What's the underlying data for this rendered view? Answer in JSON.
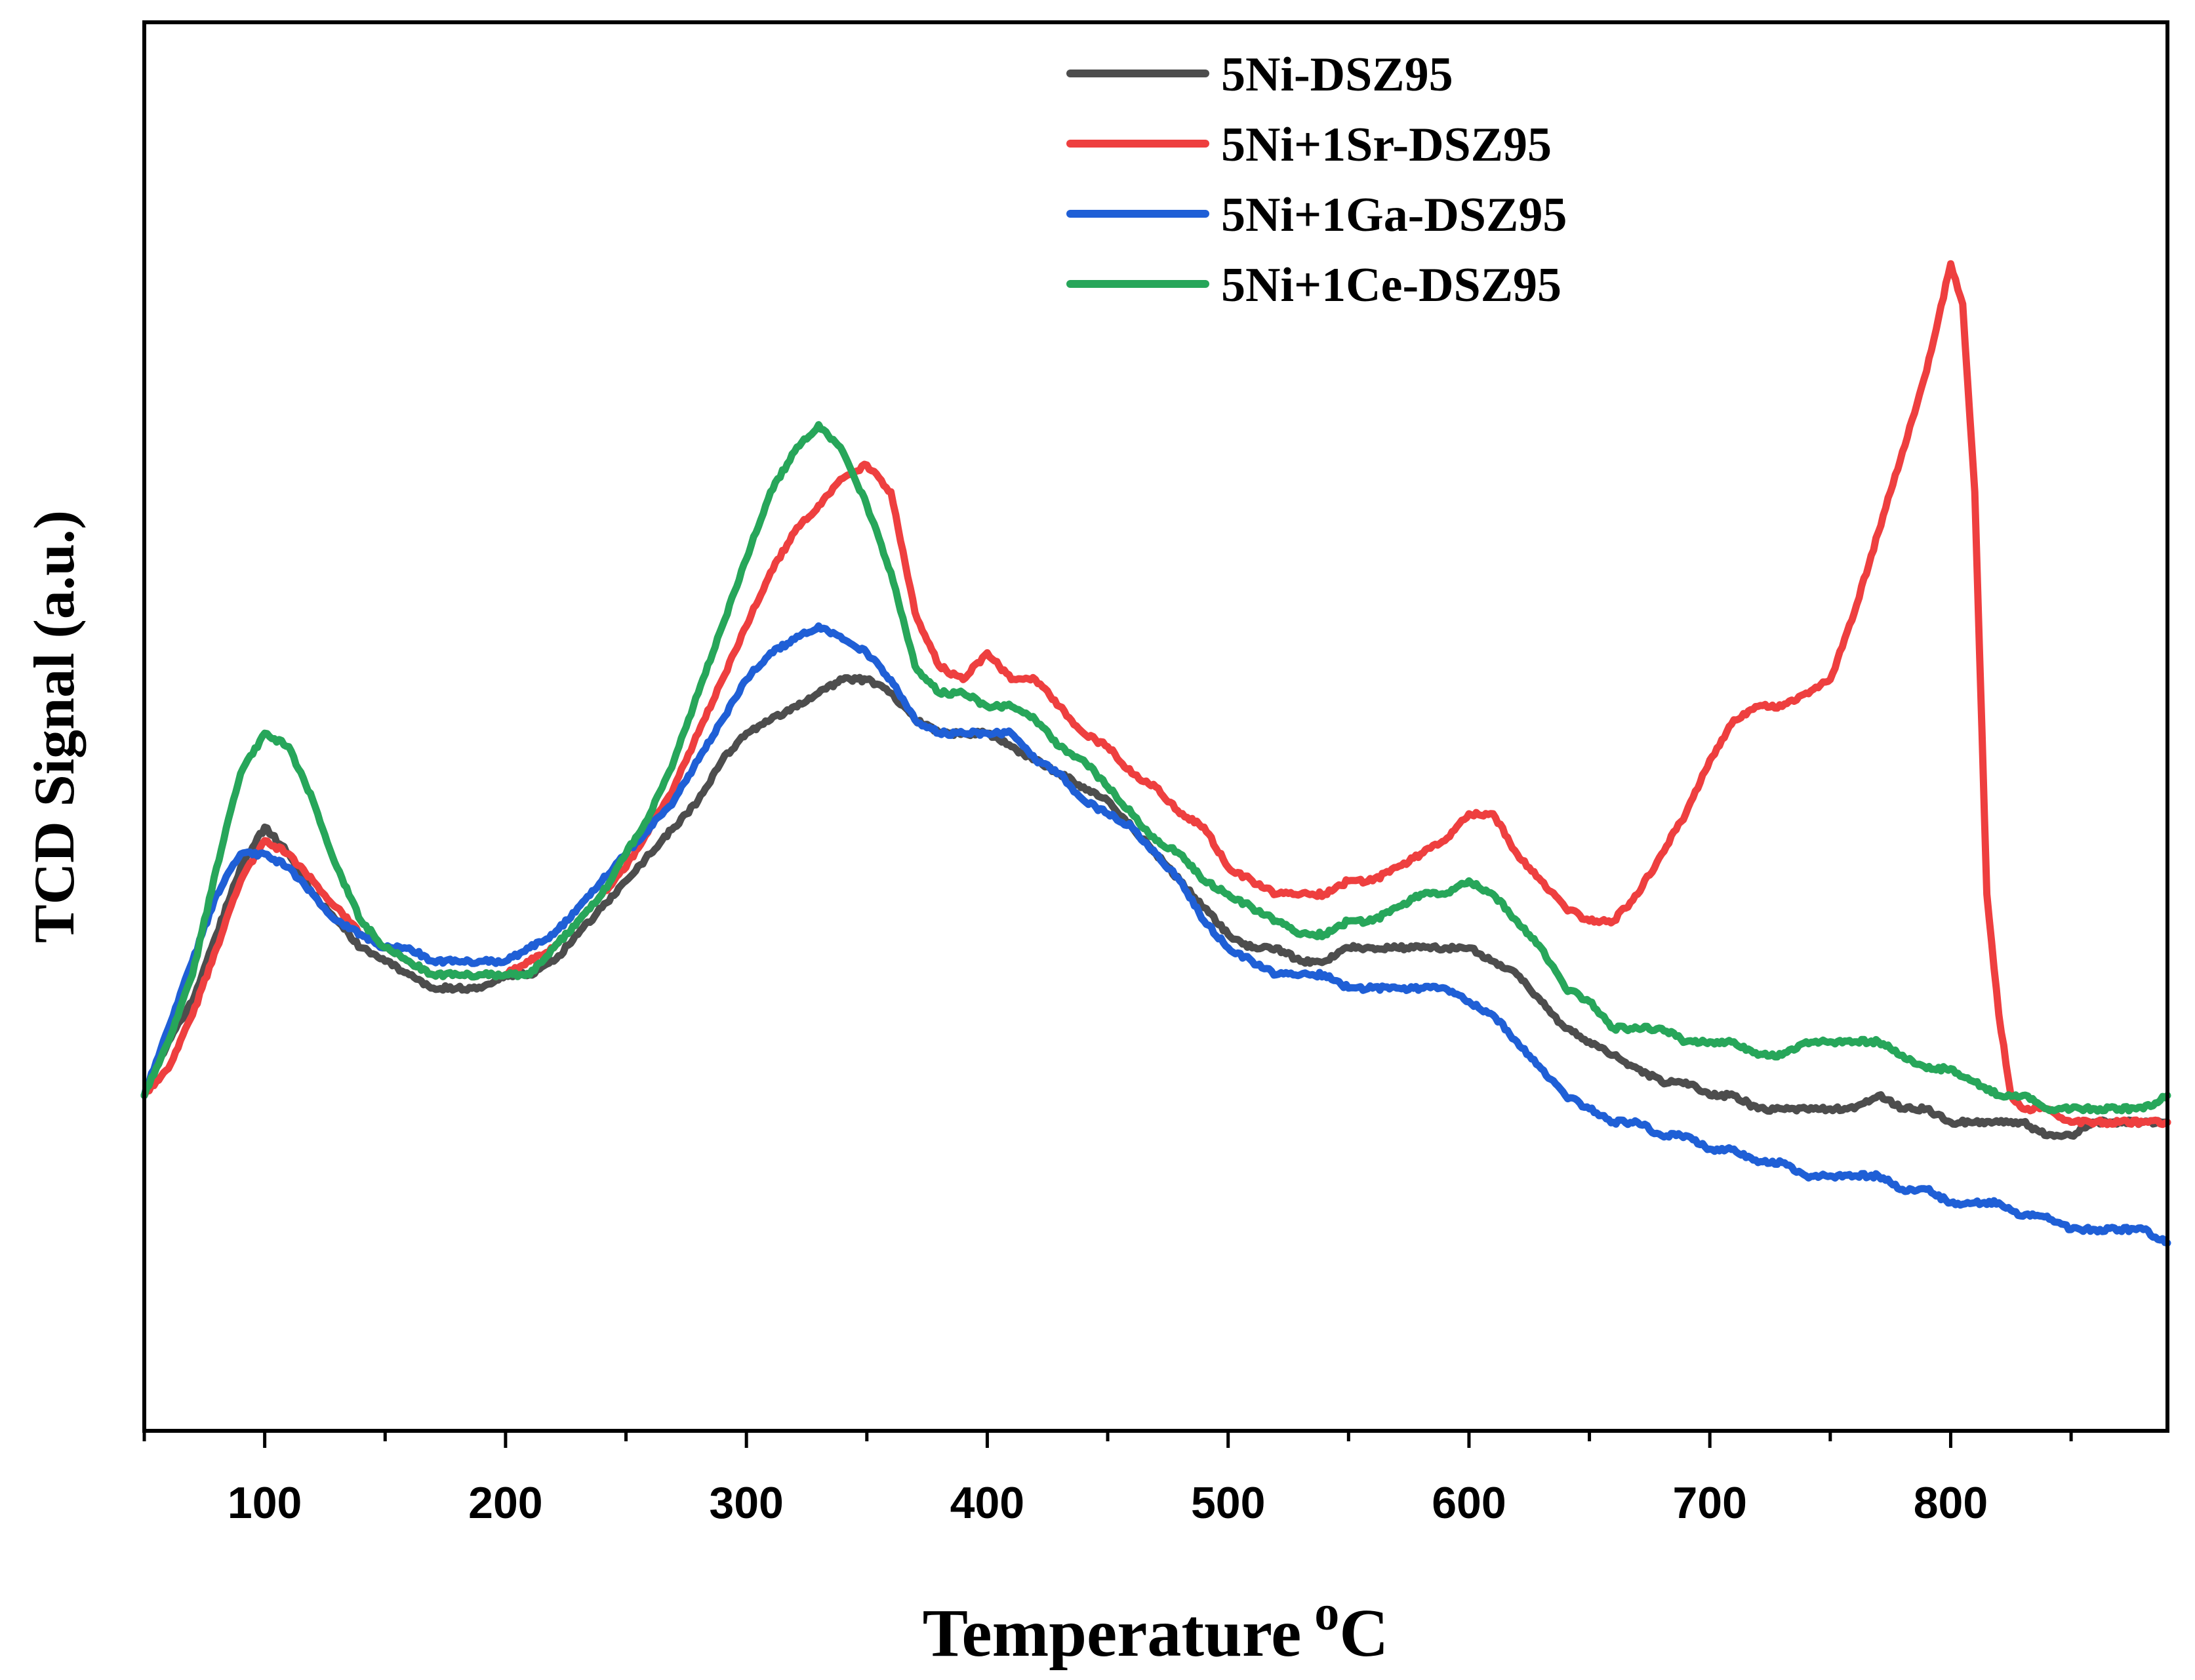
{
  "chart_data": {
    "type": "line",
    "title": "",
    "xlabel": "Temperature",
    "xlabel_superscript": "o",
    "xlabel_unit": "C",
    "ylabel": "TCD Signal (a.u.)",
    "xlim": [
      50,
      890
    ],
    "ylim": [
      -5,
      100
    ],
    "x_ticks": [
      100,
      200,
      300,
      400,
      500,
      600,
      700,
      800
    ],
    "y_ticks_shown": false,
    "grid": false,
    "legend_position": "top-center",
    "series": [
      {
        "name": "5Ni-DSZ95",
        "color": "#4d4d4d",
        "x": [
          50,
          60,
          70,
          80,
          90,
          100,
          110,
          120,
          130,
          140,
          150,
          160,
          170,
          180,
          190,
          200,
          210,
          220,
          230,
          240,
          250,
          260,
          270,
          280,
          290,
          300,
          310,
          320,
          330,
          340,
          350,
          360,
          370,
          380,
          390,
          400,
          410,
          420,
          430,
          440,
          450,
          460,
          470,
          480,
          490,
          500,
          510,
          520,
          530,
          540,
          550,
          560,
          570,
          580,
          590,
          600,
          610,
          620,
          630,
          640,
          650,
          660,
          670,
          680,
          690,
          700,
          710,
          720,
          730,
          740,
          750,
          760,
          770,
          780,
          790,
          800,
          810,
          820,
          830,
          840,
          850,
          860,
          870,
          880,
          890
        ],
        "y": [
          20,
          24,
          27,
          32,
          37,
          40,
          38,
          35,
          33,
          31,
          30,
          29,
          28,
          28,
          28,
          29,
          29,
          30,
          32,
          34,
          36,
          38,
          40,
          42,
          45,
          47,
          48,
          49,
          50,
          51,
          51,
          50,
          48,
          47,
          47,
          47,
          46,
          45,
          44,
          43,
          42,
          40,
          38,
          36,
          34,
          32,
          31,
          31,
          30,
          30,
          31,
          31,
          31,
          31,
          31,
          31,
          30,
          29,
          27,
          25,
          24,
          23,
          22,
          21,
          21,
          20,
          20,
          19,
          19,
          19,
          19,
          19,
          20,
          19,
          19,
          18,
          18,
          18,
          18,
          17,
          17,
          18,
          18,
          18,
          18
        ]
      },
      {
        "name": "5Ni+1Sr-DSZ95",
        "color": "#ee3f3f",
        "x": [
          50,
          60,
          70,
          80,
          90,
          100,
          110,
          120,
          130,
          140,
          150,
          160,
          170,
          180,
          190,
          200,
          210,
          220,
          230,
          240,
          250,
          260,
          270,
          280,
          290,
          300,
          310,
          320,
          330,
          340,
          350,
          360,
          370,
          380,
          390,
          400,
          410,
          420,
          430,
          440,
          450,
          460,
          470,
          480,
          490,
          500,
          510,
          520,
          530,
          540,
          550,
          560,
          570,
          580,
          590,
          600,
          610,
          620,
          630,
          640,
          650,
          660,
          670,
          680,
          690,
          700,
          710,
          720,
          730,
          740,
          750,
          760,
          770,
          780,
          790,
          795,
          800,
          805,
          810,
          815,
          820,
          825,
          830,
          840,
          850,
          860,
          870,
          880,
          890
        ],
        "y": [
          20,
          22,
          26,
          31,
          36,
          39,
          38,
          36,
          34,
          32,
          31,
          30,
          29,
          29,
          29,
          29,
          30,
          31,
          33,
          35,
          37,
          40,
          43,
          47,
          51,
          55,
          59,
          62,
          64,
          66,
          67,
          65,
          56,
          52,
          51,
          53,
          51,
          51,
          49,
          47,
          46,
          44,
          43,
          41,
          40,
          37,
          36,
          35,
          35,
          35,
          36,
          36,
          37,
          38,
          39,
          41,
          41,
          38,
          36,
          34,
          33,
          33,
          35,
          38,
          41,
          45,
          48,
          49,
          49,
          50,
          51,
          56,
          62,
          68,
          74,
          78,
          82,
          79,
          65,
          35,
          26,
          20,
          19,
          19,
          18,
          18,
          18,
          18,
          18
        ]
      },
      {
        "name": "5Ni+1Ga-DSZ95",
        "color": "#1f5fd6",
        "x": [
          50,
          60,
          70,
          80,
          90,
          100,
          110,
          120,
          130,
          140,
          150,
          160,
          170,
          180,
          190,
          200,
          210,
          220,
          230,
          240,
          250,
          260,
          270,
          280,
          290,
          300,
          310,
          320,
          330,
          340,
          350,
          360,
          370,
          380,
          390,
          400,
          410,
          420,
          430,
          440,
          450,
          460,
          470,
          480,
          490,
          500,
          510,
          520,
          530,
          540,
          550,
          560,
          570,
          580,
          590,
          600,
          610,
          620,
          630,
          640,
          650,
          660,
          670,
          680,
          690,
          700,
          710,
          720,
          730,
          740,
          750,
          760,
          770,
          780,
          790,
          800,
          810,
          820,
          830,
          840,
          850,
          860,
          870,
          880,
          890
        ],
        "y": [
          20,
          25,
          30,
          35,
          38,
          38,
          37,
          35,
          33,
          32,
          31,
          31,
          30,
          30,
          30,
          30,
          31,
          32,
          34,
          36,
          38,
          40,
          42,
          45,
          48,
          51,
          53,
          54,
          55,
          54,
          53,
          51,
          48,
          47,
          47,
          47,
          47,
          45,
          44,
          42,
          41,
          40,
          38,
          36,
          33,
          31,
          30,
          29,
          29,
          29,
          28,
          28,
          28,
          28,
          28,
          27,
          26,
          24,
          22,
          20,
          19,
          18,
          18,
          17,
          17,
          16,
          16,
          15,
          15,
          14,
          14,
          14,
          14,
          13,
          13,
          12,
          12,
          12,
          11,
          11,
          10,
          10,
          10,
          10,
          9
        ]
      },
      {
        "name": "5Ni+1Ce-DSZ95",
        "color": "#27a65a",
        "x": [
          50,
          60,
          70,
          80,
          90,
          100,
          110,
          120,
          130,
          140,
          150,
          160,
          170,
          180,
          190,
          200,
          210,
          220,
          230,
          240,
          250,
          260,
          270,
          280,
          290,
          300,
          310,
          320,
          330,
          340,
          350,
          360,
          370,
          380,
          390,
          400,
          410,
          420,
          430,
          440,
          450,
          460,
          470,
          480,
          490,
          500,
          510,
          520,
          530,
          540,
          550,
          560,
          570,
          580,
          590,
          600,
          610,
          620,
          630,
          640,
          650,
          660,
          670,
          680,
          690,
          700,
          710,
          720,
          730,
          740,
          750,
          760,
          770,
          780,
          790,
          800,
          810,
          820,
          830,
          840,
          850,
          860,
          870,
          880,
          890
        ],
        "y": [
          20,
          24,
          29,
          37,
          44,
          47,
          46,
          42,
          37,
          33,
          31,
          30,
          29,
          29,
          29,
          29,
          29,
          31,
          33,
          35,
          38,
          41,
          45,
          50,
          55,
          60,
          65,
          68,
          70,
          68,
          64,
          59,
          52,
          50,
          50,
          49,
          49,
          48,
          46,
          45,
          43,
          41,
          39,
          38,
          36,
          35,
          34,
          33,
          32,
          32,
          33,
          33,
          34,
          35,
          35,
          36,
          35,
          33,
          31,
          28,
          27,
          25,
          25,
          25,
          24,
          24,
          24,
          23,
          23,
          24,
          24,
          24,
          24,
          23,
          22,
          22,
          21,
          20,
          20,
          19,
          19,
          19,
          19,
          19,
          20
        ]
      }
    ]
  }
}
